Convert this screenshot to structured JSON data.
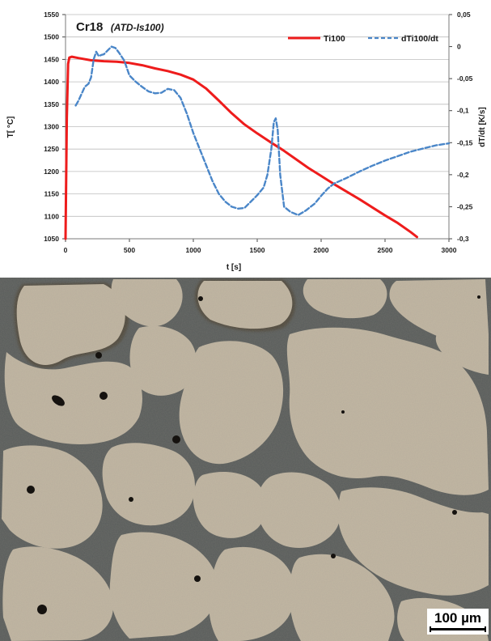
{
  "chart_data": {
    "type": "line",
    "title": "Cr18",
    "subtitle": "(ATD-Is100)",
    "xlabel": "t [s]",
    "ylabel": "T[ °C]",
    "y2label": "dT/dt [K/s]",
    "xlim": [
      0,
      3000
    ],
    "ylim": [
      1050,
      1550
    ],
    "y2lim": [
      -0.3,
      0.05
    ],
    "xticks": [
      "0",
      "500",
      "1000",
      "1500",
      "2000",
      "2500",
      "3000"
    ],
    "yticks": [
      "1050",
      "1100",
      "1150",
      "1200",
      "1250",
      "1300",
      "1350",
      "1400",
      "1450",
      "1500",
      "1550"
    ],
    "y2ticks": [
      "-0,3",
      "-0,25",
      "-0,2",
      "-0,15",
      "-0,1",
      "-0,05",
      "0",
      "0,05"
    ],
    "grid": "horizontal",
    "legend_position": "top-right",
    "series": [
      {
        "name": "Ti100",
        "axis": "left",
        "color": "#ee1c1c",
        "style": "solid",
        "points": [
          [
            0,
            1050
          ],
          [
            10,
            1320
          ],
          [
            20,
            1440
          ],
          [
            30,
            1454
          ],
          [
            50,
            1456
          ],
          [
            100,
            1453
          ],
          [
            200,
            1448
          ],
          [
            300,
            1446
          ],
          [
            400,
            1445
          ],
          [
            500,
            1442
          ],
          [
            600,
            1437
          ],
          [
            700,
            1430
          ],
          [
            800,
            1424
          ],
          [
            900,
            1416
          ],
          [
            1000,
            1405
          ],
          [
            1100,
            1385
          ],
          [
            1200,
            1358
          ],
          [
            1300,
            1330
          ],
          [
            1400,
            1305
          ],
          [
            1500,
            1285
          ],
          [
            1600,
            1266
          ],
          [
            1700,
            1248
          ],
          [
            1800,
            1228
          ],
          [
            1900,
            1208
          ],
          [
            2000,
            1190
          ],
          [
            2100,
            1172
          ],
          [
            2200,
            1155
          ],
          [
            2300,
            1138
          ],
          [
            2400,
            1120
          ],
          [
            2500,
            1102
          ],
          [
            2600,
            1085
          ],
          [
            2700,
            1065
          ],
          [
            2750,
            1054
          ]
        ]
      },
      {
        "name": "dTi100/dt",
        "axis": "right",
        "color": "#4a86c8",
        "style": "dashed",
        "points": [
          [
            80,
            -0.092
          ],
          [
            100,
            -0.085
          ],
          [
            130,
            -0.072
          ],
          [
            150,
            -0.063
          ],
          [
            180,
            -0.058
          ],
          [
            200,
            -0.048
          ],
          [
            220,
            -0.02
          ],
          [
            240,
            -0.008
          ],
          [
            260,
            -0.015
          ],
          [
            280,
            -0.013
          ],
          [
            300,
            -0.012
          ],
          [
            330,
            -0.006
          ],
          [
            360,
            0.0
          ],
          [
            390,
            -0.002
          ],
          [
            420,
            -0.01
          ],
          [
            460,
            -0.022
          ],
          [
            500,
            -0.045
          ],
          [
            550,
            -0.055
          ],
          [
            600,
            -0.063
          ],
          [
            650,
            -0.07
          ],
          [
            700,
            -0.073
          ],
          [
            750,
            -0.072
          ],
          [
            800,
            -0.066
          ],
          [
            850,
            -0.068
          ],
          [
            900,
            -0.08
          ],
          [
            950,
            -0.105
          ],
          [
            1000,
            -0.135
          ],
          [
            1050,
            -0.16
          ],
          [
            1100,
            -0.185
          ],
          [
            1150,
            -0.21
          ],
          [
            1200,
            -0.23
          ],
          [
            1250,
            -0.242
          ],
          [
            1300,
            -0.25
          ],
          [
            1350,
            -0.253
          ],
          [
            1400,
            -0.252
          ],
          [
            1450,
            -0.242
          ],
          [
            1500,
            -0.232
          ],
          [
            1550,
            -0.22
          ],
          [
            1580,
            -0.2
          ],
          [
            1610,
            -0.16
          ],
          [
            1630,
            -0.118
          ],
          [
            1645,
            -0.112
          ],
          [
            1660,
            -0.13
          ],
          [
            1680,
            -0.2
          ],
          [
            1710,
            -0.25
          ],
          [
            1760,
            -0.258
          ],
          [
            1820,
            -0.263
          ],
          [
            1880,
            -0.256
          ],
          [
            1950,
            -0.245
          ],
          [
            2000,
            -0.233
          ],
          [
            2050,
            -0.222
          ],
          [
            2100,
            -0.214
          ],
          [
            2200,
            -0.205
          ],
          [
            2300,
            -0.195
          ],
          [
            2400,
            -0.186
          ],
          [
            2500,
            -0.178
          ],
          [
            2600,
            -0.171
          ],
          [
            2700,
            -0.164
          ],
          [
            2800,
            -0.159
          ],
          [
            2900,
            -0.154
          ],
          [
            3000,
            -0.151
          ]
        ]
      }
    ]
  },
  "micrograph": {
    "scale_label": "100 µm",
    "colors": {
      "matrix": "#c2b7a3",
      "boundary": "#2a2520",
      "eutectic": "#7f8c92"
    }
  }
}
